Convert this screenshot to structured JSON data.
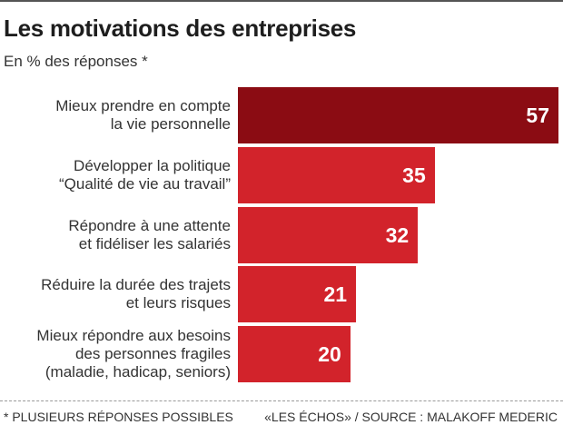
{
  "chart_data": {
    "type": "bar",
    "orientation": "horizontal",
    "title": "Les motivations des entreprises",
    "subtitle": "En % des réponses *",
    "categories": [
      "Mieux prendre en compte\nla vie personnelle",
      "Développer la politique\n“Qualité de vie au travail”",
      "Répondre à une attente\net fidéliser les salariés",
      "Réduire la durée des trajets\net leurs risques",
      "Mieux répondre aux besoins\ndes personnes fragiles\n(maladie, hadicap, seniors)"
    ],
    "values": [
      57,
      35,
      32,
      21,
      20
    ],
    "colors": [
      "#8b0c13",
      "#d2232b",
      "#d2232b",
      "#d2232b",
      "#d2232b"
    ],
    "grid": false,
    "data_labels": true
  },
  "footer": {
    "note": "* PLUSIEURS RÉPONSES POSSIBLES",
    "source": "«LES ÉCHOS» / SOURCE : MALAKOFF MEDERIC"
  }
}
